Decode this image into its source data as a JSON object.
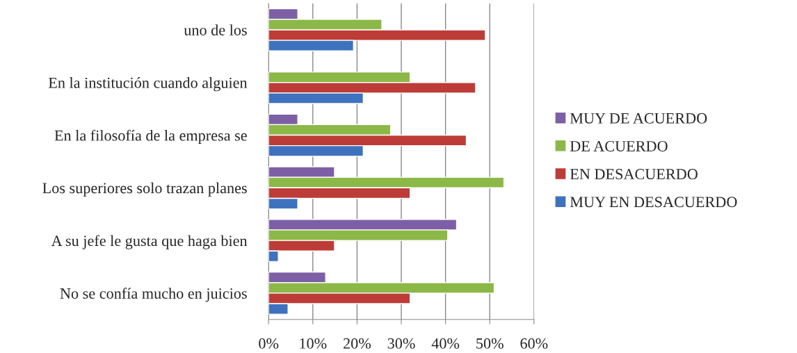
{
  "chart_data": {
    "type": "bar",
    "orientation": "horizontal",
    "categories": [
      "uno de los",
      "En la institución cuando alguien",
      "En la filosofía de la empresa se",
      "Los superiores solo trazan planes",
      "A su jefe le gusta que haga bien",
      "No se confía mucho en juicios"
    ],
    "series": [
      {
        "name": "MUY DE ACUERDO",
        "color": "#7d5fa6",
        "values": [
          6.6,
          null,
          6.6,
          14.9,
          42.5,
          12.9
        ]
      },
      {
        "name": "DE ACUERDO",
        "color": "#8cb848",
        "values": [
          25.6,
          32,
          27.6,
          53.2,
          40.5,
          51
        ]
      },
      {
        "name": "EN DESACUERDO",
        "color": "#be3c38",
        "values": [
          49,
          46.8,
          44.7,
          32,
          14.9,
          32
        ]
      },
      {
        "name": "MUY EN DESACUERDO",
        "color": "#3f72be",
        "values": [
          19.2,
          21.4,
          21.4,
          6.6,
          2.2,
          4.4
        ]
      }
    ],
    "xlim": [
      0,
      60
    ],
    "xticks": [
      {
        "value": 0,
        "label": "0%"
      },
      {
        "value": 10,
        "label": "10%"
      },
      {
        "value": 20,
        "label": "20%"
      },
      {
        "value": 30,
        "label": "30%"
      },
      {
        "value": 40,
        "label": "40%"
      },
      {
        "value": 50,
        "label": "50%"
      },
      {
        "value": 60,
        "label": "60%"
      }
    ],
    "grid": "x",
    "legend": "right"
  }
}
